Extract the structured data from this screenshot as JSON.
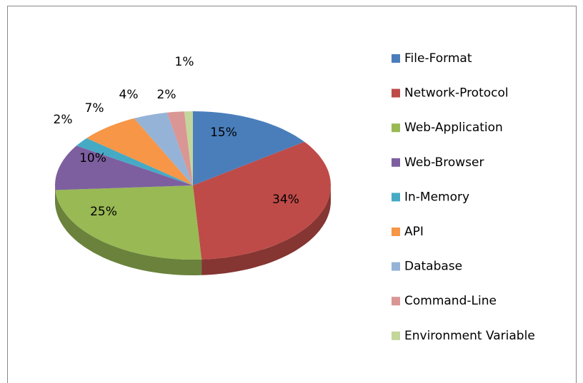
{
  "chart_data": {
    "type": "pie",
    "categories": [
      "File-Format",
      "Network-Protocol",
      "Web-Application",
      "Web-Browser",
      "In-Memory",
      "API",
      "Database",
      "Command-Line",
      "Environment Variable"
    ],
    "values": [
      15,
      34,
      25,
      10,
      2,
      7,
      4,
      2,
      1
    ],
    "value_labels": [
      "15%",
      "34%",
      "25%",
      "10%",
      "2%",
      "7%",
      "4%",
      "2%",
      "1%"
    ],
    "colors": [
      "#4a7ebb",
      "#be4b48",
      "#98b954",
      "#7d5fa0",
      "#46aac5",
      "#f79646",
      "#95b3d7",
      "#d99694",
      "#c3d69b"
    ],
    "legend": "right"
  }
}
